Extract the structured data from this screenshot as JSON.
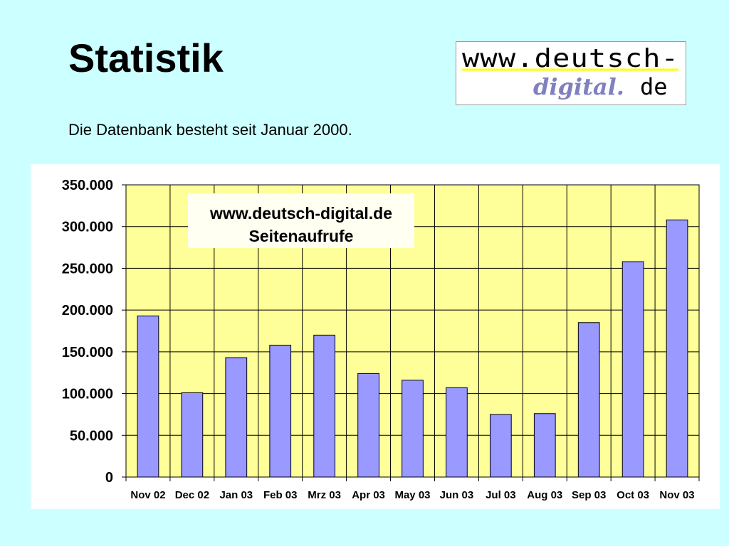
{
  "slide": {
    "title": "Statistik",
    "subtitle": "Die Datenbank besteht seit Januar 2000."
  },
  "logo": {
    "line1": "www.deutsch-",
    "line2": "digital.",
    "line3": "de"
  },
  "colors": {
    "background": "#ccffff",
    "plot_area": "#ffff99",
    "bar_fill": "#9999ff",
    "bar_stroke": "#000000",
    "grid": "#000000",
    "logo_accent": "#ffff00",
    "logo_script": "#8080c0"
  },
  "chart_data": {
    "type": "bar",
    "title": "www.deutsch-digital.de",
    "subtitle": "Seitenaufrufe",
    "xlabel": "",
    "ylabel": "",
    "categories": [
      "Nov 02",
      "Dec 02",
      "Jan 03",
      "Feb 03",
      "Mrz 03",
      "Apr 03",
      "May 03",
      "Jun 03",
      "Jul 03",
      "Aug 03",
      "Sep 03",
      "Oct 03",
      "Nov 03"
    ],
    "values": [
      193000,
      101000,
      143000,
      158000,
      170000,
      124000,
      116000,
      107000,
      75000,
      76000,
      185000,
      258000,
      308000
    ],
    "ylim": [
      0,
      350000
    ],
    "yticks": [
      0,
      50000,
      100000,
      150000,
      200000,
      250000,
      300000,
      350000
    ],
    "ytick_labels": [
      "0",
      "50.000",
      "100.000",
      "150.000",
      "200.000",
      "250.000",
      "300.000",
      "350.000"
    ],
    "grid": true,
    "legend": "none"
  }
}
